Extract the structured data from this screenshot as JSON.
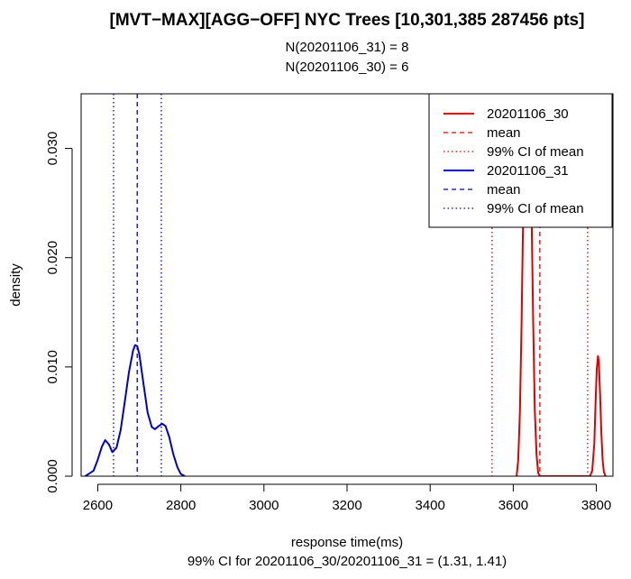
{
  "chart_data": {
    "type": "line",
    "title": "[MVT−MAX][AGG−OFF] NYC Trees [10,301,385  287456 pts]",
    "subtitle_lines": [
      "N(20201106_31) = 8",
      "N(20201106_30) = 6"
    ],
    "xlabel": "response time(ms)",
    "ylabel": "density",
    "footer": "99% CI for 20201106_30/20201106_31 = (1.31, 1.41)",
    "xlim": [
      2560,
      3840
    ],
    "ylim": [
      0,
      0.035
    ],
    "x_ticks": [
      2600,
      2800,
      3000,
      3200,
      3400,
      3600,
      3800
    ],
    "y_ticks": [
      0.0,
      0.01,
      0.02,
      0.03
    ],
    "y_tick_labels": [
      "0.000",
      "0.010",
      "0.020",
      "0.030"
    ],
    "grid": false,
    "legend_position": "top-right",
    "legend": [
      {
        "label": "20201106_30",
        "color": "#e00000",
        "style": "solid"
      },
      {
        "label": "mean",
        "color": "#e00000",
        "style": "dashed"
      },
      {
        "label": "99% CI  of mean",
        "color": "#e00000",
        "style": "dotted"
      },
      {
        "label": "20201106_31",
        "color": "#0000cc",
        "style": "solid"
      },
      {
        "label": "mean",
        "color": "#0000cc",
        "style": "dashed"
      },
      {
        "label": "99% CI  of mean",
        "color": "#0000cc",
        "style": "dotted"
      }
    ],
    "series": [
      {
        "name": "20201106_31",
        "color": "#0000cc",
        "x": [
          2570,
          2590,
          2600,
          2610,
          2618,
          2627,
          2635,
          2645,
          2655,
          2665,
          2675,
          2685,
          2690,
          2695,
          2700,
          2710,
          2720,
          2730,
          2738,
          2747,
          2755,
          2763,
          2772,
          2782,
          2792,
          2800,
          2810
        ],
        "y": [
          0.0,
          0.0005,
          0.0015,
          0.0027,
          0.0033,
          0.0029,
          0.0022,
          0.0026,
          0.0042,
          0.0068,
          0.0095,
          0.0115,
          0.012,
          0.0119,
          0.0112,
          0.0085,
          0.0058,
          0.0045,
          0.0043,
          0.0046,
          0.0048,
          0.0046,
          0.0036,
          0.002,
          0.0008,
          0.0002,
          0.0
        ]
      },
      {
        "name": "20201106_30",
        "color": "#e00000",
        "x": [
          3608,
          3612,
          3616,
          3620,
          3624,
          3628,
          3632,
          3636,
          3640,
          3644,
          3648,
          3652,
          3656,
          3660,
          3664,
          3668,
          3700,
          3750,
          3785,
          3790,
          3795,
          3798,
          3801,
          3804,
          3806,
          3809,
          3812,
          3815,
          3818,
          3822
        ],
        "y": [
          0.0,
          0.0015,
          0.006,
          0.014,
          0.024,
          0.033,
          0.036,
          0.036,
          0.033,
          0.024,
          0.014,
          0.006,
          0.002,
          0.0003,
          0.0,
          0.0,
          0.0,
          0.0,
          0.0,
          0.0005,
          0.003,
          0.0065,
          0.0098,
          0.011,
          0.0105,
          0.0075,
          0.004,
          0.0015,
          0.0004,
          0.0
        ]
      }
    ],
    "reference_lines": [
      {
        "series": "20201106_31",
        "kind": "mean",
        "x": 2695,
        "color": "#0000cc",
        "style": "dashed"
      },
      {
        "series": "20201106_31",
        "kind": "ci_low",
        "x": 2638,
        "color": "#0000cc",
        "style": "dotted"
      },
      {
        "series": "20201106_31",
        "kind": "ci_high",
        "x": 2753,
        "color": "#0000cc",
        "style": "dotted"
      },
      {
        "series": "20201106_30",
        "kind": "mean",
        "x": 3664,
        "color": "#e00000",
        "style": "dashed"
      },
      {
        "series": "20201106_30",
        "kind": "ci_low",
        "x": 3549,
        "color": "#e00000",
        "style": "dotted"
      },
      {
        "series": "20201106_30",
        "kind": "ci_high",
        "x": 3779,
        "color": "#e00000",
        "style": "dotted"
      }
    ]
  }
}
